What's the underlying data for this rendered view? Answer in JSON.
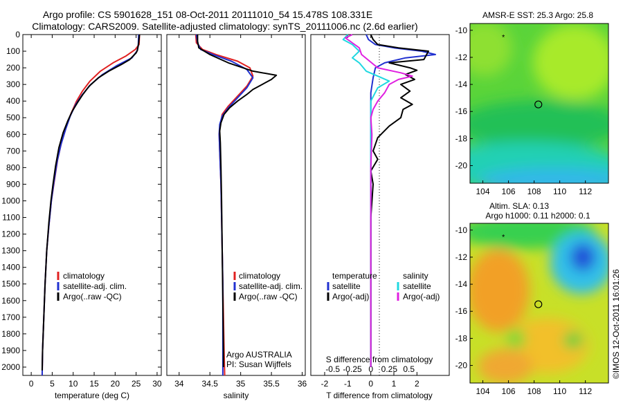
{
  "header": {
    "line1": "Argo profile: CS 5901628_151 08-Oct-2011 20111010_54 15.478S 108.331E",
    "line2": "Climatology: CARS2009. Satellite-adjusted climatology: synTS_20111006.nc (2.6d earlier)"
  },
  "side_label": "©IMOS 12-Oct-2011 16:01:26",
  "colors": {
    "climatology": "#e02020",
    "satellite": "#2030d0",
    "argo": "#000000",
    "salinity_satellite": "#20d8e0",
    "salinity_argo": "#e020e0"
  },
  "chart_data": [
    {
      "type": "line",
      "name": "temperature-profile",
      "xlabel": "temperature (deg C)",
      "ylabel": "",
      "xlim": [
        -2,
        31
      ],
      "ylim": [
        2050,
        0
      ],
      "xticks": [
        0,
        5,
        10,
        15,
        20,
        25,
        30
      ],
      "yticks": [
        0,
        100,
        200,
        300,
        400,
        500,
        600,
        700,
        800,
        900,
        1000,
        1100,
        1200,
        1300,
        1400,
        1500,
        1600,
        1700,
        1800,
        1900,
        2000
      ],
      "legend": [
        "climatology",
        "satellite-adj. clim.",
        "Argo(..raw -QC)"
      ],
      "series": [
        {
          "name": "climatology",
          "points": [
            [
              25.8,
              0
            ],
            [
              25.7,
              60
            ],
            [
              24.8,
              90
            ],
            [
              22.5,
              130
            ],
            [
              19.5,
              170
            ],
            [
              16.5,
              220
            ],
            [
              14,
              280
            ],
            [
              12.2,
              340
            ],
            [
              10.8,
              400
            ],
            [
              9.4,
              480
            ],
            [
              8.3,
              560
            ],
            [
              7.2,
              650
            ],
            [
              6.3,
              750
            ],
            [
              5.5,
              880
            ],
            [
              4.8,
              1000
            ],
            [
              4.2,
              1150
            ],
            [
              3.7,
              1300
            ],
            [
              3.3,
              1500
            ],
            [
              3,
              1700
            ],
            [
              2.7,
              1900
            ],
            [
              2.6,
              2050
            ]
          ]
        },
        {
          "name": "satellite-adj. clim.",
          "points": [
            [
              25.6,
              0
            ],
            [
              25.5,
              70
            ],
            [
              25.2,
              100
            ],
            [
              24,
              140
            ],
            [
              20.5,
              185
            ],
            [
              17,
              240
            ],
            [
              14.2,
              300
            ],
            [
              12.2,
              360
            ],
            [
              10.6,
              420
            ],
            [
              9.3,
              490
            ],
            [
              8.2,
              570
            ],
            [
              7.1,
              660
            ],
            [
              6.2,
              760
            ],
            [
              5.4,
              890
            ],
            [
              4.8,
              1000
            ],
            [
              4.2,
              1150
            ],
            [
              3.7,
              1300
            ],
            [
              3.3,
              1500
            ],
            [
              3,
              1700
            ],
            [
              2.7,
              1900
            ],
            [
              2.6,
              2050
            ]
          ]
        },
        {
          "name": "Argo(..raw -QC)",
          "points": [
            [
              25.8,
              0
            ],
            [
              25.6,
              50
            ],
            [
              25.3,
              95
            ],
            [
              25,
              110
            ],
            [
              23.5,
              150
            ],
            [
              21.5,
              180
            ],
            [
              18.5,
              220
            ],
            [
              16,
              260
            ],
            [
              13.8,
              310
            ],
            [
              12.3,
              360
            ],
            [
              11,
              410
            ],
            [
              9.8,
              460
            ],
            [
              8.7,
              520
            ],
            [
              7.6,
              590
            ],
            [
              6.6,
              680
            ],
            [
              5.8,
              790
            ],
            [
              5.2,
              900
            ],
            [
              4.7,
              1000
            ],
            [
              4.2,
              1130
            ],
            [
              3.7,
              1300
            ],
            [
              3.3,
              1500
            ],
            [
              3,
              1700
            ],
            [
              2.7,
              1900
            ],
            [
              2.6,
              2020
            ]
          ]
        }
      ]
    },
    {
      "type": "line",
      "name": "salinity-profile",
      "xlabel": "salinity",
      "ylabel": "",
      "xlim": [
        33.8,
        36.05
      ],
      "ylim": [
        2050,
        0
      ],
      "xticks": [
        34,
        34.5,
        35,
        35.5,
        36
      ],
      "legend": [
        "climatology",
        "satellite-adj. clim.",
        "Argo(..raw -QC)"
      ],
      "annotation": [
        "Argo AUSTRALIA",
        "PI: Susan Wijffels"
      ],
      "series": [
        {
          "name": "climatology",
          "points": [
            [
              34.27,
              0
            ],
            [
              34.28,
              50
            ],
            [
              34.38,
              90
            ],
            [
              34.6,
              120
            ],
            [
              34.95,
              160
            ],
            [
              35.15,
              200
            ],
            [
              35.2,
              250
            ],
            [
              35.1,
              310
            ],
            [
              34.95,
              370
            ],
            [
              34.8,
              430
            ],
            [
              34.7,
              480
            ],
            [
              34.67,
              540
            ],
            [
              34.65,
              600
            ],
            [
              34.66,
              700
            ],
            [
              34.68,
              900
            ],
            [
              34.69,
              1100
            ],
            [
              34.7,
              1300
            ],
            [
              34.71,
              1500
            ],
            [
              34.72,
              1700
            ],
            [
              34.73,
              1900
            ],
            [
              34.74,
              2050
            ]
          ]
        },
        {
          "name": "satellite-adj. clim.",
          "points": [
            [
              34.28,
              0
            ],
            [
              34.3,
              50
            ],
            [
              34.35,
              90
            ],
            [
              34.55,
              120
            ],
            [
              34.85,
              160
            ],
            [
              35.1,
              210
            ],
            [
              35.2,
              260
            ],
            [
              35.1,
              320
            ],
            [
              34.95,
              380
            ],
            [
              34.8,
              440
            ],
            [
              34.7,
              490
            ],
            [
              34.66,
              540
            ],
            [
              34.65,
              600
            ],
            [
              34.66,
              700
            ],
            [
              34.68,
              900
            ],
            [
              34.69,
              1100
            ],
            [
              34.7,
              1300
            ],
            [
              34.71,
              1500
            ],
            [
              34.71,
              1700
            ],
            [
              34.71,
              1900
            ],
            [
              34.71,
              2050
            ]
          ]
        },
        {
          "name": "Argo(..raw -QC)",
          "points": [
            [
              34.3,
              0
            ],
            [
              34.3,
              40
            ],
            [
              34.32,
              80
            ],
            [
              34.5,
              120
            ],
            [
              34.8,
              170
            ],
            [
              35.2,
              220
            ],
            [
              35.58,
              245
            ],
            [
              35.5,
              270
            ],
            [
              35.35,
              300
            ],
            [
              35.2,
              330
            ],
            [
              35.1,
              360
            ],
            [
              34.95,
              400
            ],
            [
              34.82,
              440
            ],
            [
              34.73,
              480
            ],
            [
              34.68,
              530
            ],
            [
              34.66,
              580
            ],
            [
              34.67,
              650
            ],
            [
              34.68,
              800
            ],
            [
              34.69,
              1000
            ],
            [
              34.7,
              1300
            ],
            [
              34.71,
              1600
            ],
            [
              34.72,
              1900
            ],
            [
              34.72,
              2000
            ]
          ]
        }
      ]
    },
    {
      "type": "line",
      "name": "difference-from-climatology",
      "xlabel": "T difference from climatology",
      "xlabel_top": "S difference from climatology",
      "xlim": [
        -2.6,
        3.4
      ],
      "ylim": [
        2050,
        0
      ],
      "xticks": [
        -2,
        -1,
        0,
        1,
        2
      ],
      "sticks": [
        {
          "label": "-0.5",
          "t": -1.65
        },
        {
          "label": "-0.25",
          "t": -0.8
        },
        {
          "label": "0",
          "t": 0
        },
        {
          "label": "0.25",
          "t": 0.8
        },
        {
          "label": "0.5",
          "t": 1.65
        }
      ],
      "legend_temperature": [
        "temperature",
        "satellite",
        "Argo(-adj)"
      ],
      "legend_salinity": [
        "salinity",
        "satellite",
        "Argo(-adj)"
      ],
      "series": [
        {
          "name": "temperature-satellite",
          "points": [
            [
              -0.2,
              0
            ],
            [
              -0.1,
              30
            ],
            [
              0.2,
              60
            ],
            [
              1,
              80
            ],
            [
              2.2,
              100
            ],
            [
              2.8,
              120
            ],
            [
              1.5,
              140
            ],
            [
              0.6,
              170
            ],
            [
              0.2,
              200
            ],
            [
              0.1,
              260
            ],
            [
              0,
              350
            ],
            [
              0,
              500
            ],
            [
              0,
              800
            ],
            [
              0,
              1200
            ],
            [
              0,
              1600
            ],
            [
              0,
              2000
            ]
          ]
        },
        {
          "name": "temperature-argo",
          "points": [
            [
              0,
              0
            ],
            [
              0.1,
              30
            ],
            [
              0.3,
              60
            ],
            [
              1.2,
              80
            ],
            [
              2.5,
              100
            ],
            [
              2.3,
              150
            ],
            [
              0.8,
              170
            ],
            [
              1.7,
              200
            ],
            [
              2,
              215
            ],
            [
              1.5,
              240
            ],
            [
              1.9,
              270
            ],
            [
              1.3,
              300
            ],
            [
              1.7,
              340
            ],
            [
              1.3,
              380
            ],
            [
              1.8,
              420
            ],
            [
              1.4,
              450
            ],
            [
              1.3,
              500
            ],
            [
              0.8,
              550
            ],
            [
              0.3,
              620
            ],
            [
              0.1,
              700
            ],
            [
              0.3,
              750
            ],
            [
              0,
              820
            ],
            [
              0.1,
              900
            ],
            [
              0,
              1100
            ],
            [
              0,
              1500
            ],
            [
              0,
              2000
            ]
          ]
        },
        {
          "name": "salinity-satellite",
          "points": [
            [
              -1,
              0
            ],
            [
              -1.2,
              30
            ],
            [
              -0.8,
              60
            ],
            [
              -0.5,
              100
            ],
            [
              -0.8,
              140
            ],
            [
              -0.5,
              170
            ],
            [
              -0.2,
              220
            ],
            [
              0.3,
              250
            ],
            [
              0.8,
              280
            ],
            [
              0.3,
              320
            ],
            [
              0,
              400
            ],
            [
              0,
              600
            ],
            [
              0,
              1000
            ],
            [
              0,
              2000
            ]
          ]
        },
        {
          "name": "salinity-argo",
          "points": [
            [
              -0.8,
              0
            ],
            [
              -1.1,
              20
            ],
            [
              -0.8,
              50
            ],
            [
              -0.5,
              80
            ],
            [
              -0.4,
              120
            ],
            [
              0.3,
              200
            ],
            [
              1.3,
              230
            ],
            [
              1.8,
              250
            ],
            [
              1.2,
              270
            ],
            [
              0.8,
              300
            ],
            [
              0.6,
              350
            ],
            [
              0.3,
              400
            ],
            [
              0.1,
              450
            ],
            [
              0,
              500
            ],
            [
              0.05,
              600
            ],
            [
              0,
              800
            ],
            [
              0,
              1200
            ],
            [
              0,
              2000
            ]
          ]
        }
      ]
    },
    {
      "type": "heatmap",
      "name": "amsre-sst-map",
      "title": "AMSR-E SST: 25.3 Argo: 25.8",
      "xlim": [
        103,
        113.8
      ],
      "ylim": [
        -21.3,
        -9.5
      ],
      "xticks": [
        104,
        106,
        108,
        110,
        112
      ],
      "yticks": [
        -10,
        -12,
        -14,
        -16,
        -18,
        -20
      ],
      "markers": {
        "circle": [
          108.33,
          -15.48
        ],
        "star": [
          105.6,
          -10.5
        ]
      }
    },
    {
      "type": "heatmap",
      "name": "altimetry-sla-map",
      "title_lines": [
        "Altim. SLA: 0.13",
        "Argo h1000: 0.11 h2000: 0.1"
      ],
      "xlim": [
        103,
        113.8
      ],
      "ylim": [
        -21.3,
        -9.5
      ],
      "xticks": [
        104,
        106,
        108,
        110,
        112
      ],
      "yticks": [
        -10,
        -12,
        -14,
        -16,
        -18,
        -20
      ],
      "markers": {
        "circle": [
          108.33,
          -15.48
        ],
        "star": [
          105.6,
          -10.5
        ]
      }
    }
  ]
}
